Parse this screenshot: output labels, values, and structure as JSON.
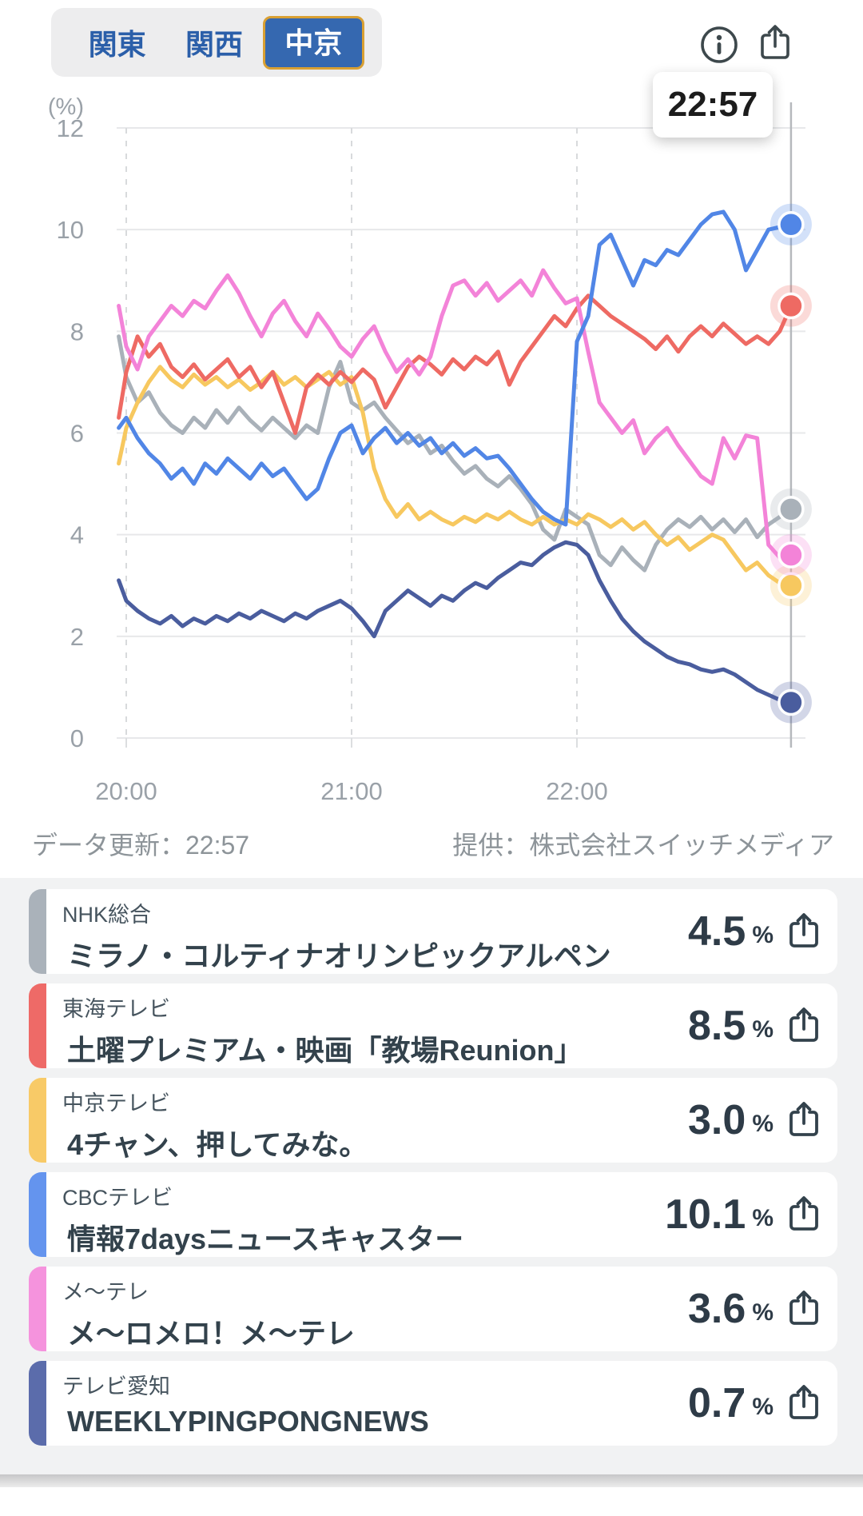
{
  "tabs": {
    "items": [
      {
        "label": "関東",
        "selected": false
      },
      {
        "label": "関西",
        "selected": false
      },
      {
        "label": "中京",
        "selected": true
      }
    ],
    "selected_bg": "#3568b0",
    "selected_border": "#d9a033",
    "label_color": "#2b5fa9"
  },
  "header": {
    "info_icon": "info-icon",
    "share_icon": "share-icon",
    "icon_color": "#3d484c"
  },
  "tooltip": {
    "time": "22:57"
  },
  "chart_data": {
    "type": "line",
    "unit_label": "(%)",
    "ylim": [
      0,
      12
    ],
    "yticks": [
      0,
      2,
      4,
      6,
      8,
      10,
      12
    ],
    "xticks": [
      {
        "label": "20:00",
        "minute": 0
      },
      {
        "label": "21:00",
        "minute": 60
      },
      {
        "label": "22:00",
        "minute": 120
      }
    ],
    "cursor_minute": 177,
    "cursor_time": "22:57",
    "grid_on": true,
    "sample_minutes": [
      -2,
      0,
      3,
      6,
      9,
      12,
      15,
      18,
      21,
      24,
      27,
      30,
      33,
      36,
      39,
      42,
      45,
      48,
      51,
      54,
      57,
      60,
      63,
      66,
      69,
      72,
      75,
      78,
      81,
      84,
      87,
      90,
      93,
      96,
      99,
      102,
      105,
      108,
      111,
      114,
      117,
      120,
      123,
      126,
      129,
      132,
      135,
      138,
      141,
      144,
      147,
      150,
      153,
      156,
      159,
      162,
      165,
      168,
      171,
      174,
      177
    ],
    "series": [
      {
        "name": "NHK総合",
        "color": "#a9b1b9",
        "end_value": 4.5,
        "values": [
          7.9,
          7.1,
          6.6,
          6.8,
          6.4,
          6.15,
          6.0,
          6.3,
          6.1,
          6.45,
          6.2,
          6.5,
          6.25,
          6.05,
          6.3,
          6.1,
          5.9,
          6.15,
          6.0,
          6.9,
          7.4,
          6.6,
          6.45,
          6.6,
          6.3,
          6.05,
          5.8,
          5.95,
          5.6,
          5.75,
          5.45,
          5.2,
          5.35,
          5.1,
          4.95,
          5.15,
          4.9,
          4.6,
          4.1,
          3.9,
          4.5,
          4.35,
          4.2,
          3.6,
          3.4,
          3.75,
          3.5,
          3.3,
          3.8,
          4.1,
          4.3,
          4.15,
          4.35,
          4.1,
          4.3,
          4.05,
          4.3,
          3.95,
          4.2,
          4.35,
          4.5
        ]
      },
      {
        "name": "中京テレビ",
        "color": "#f7c85f",
        "end_value": 3.0,
        "values": [
          5.4,
          6.1,
          6.6,
          7.0,
          7.3,
          7.05,
          6.9,
          7.15,
          6.95,
          7.1,
          6.9,
          7.05,
          6.85,
          7.0,
          7.2,
          6.95,
          7.1,
          6.9,
          7.05,
          7.2,
          6.95,
          7.1,
          6.4,
          5.3,
          4.7,
          4.35,
          4.6,
          4.3,
          4.45,
          4.3,
          4.2,
          4.35,
          4.25,
          4.4,
          4.3,
          4.45,
          4.3,
          4.2,
          4.35,
          4.2,
          4.3,
          4.2,
          4.4,
          4.3,
          4.15,
          4.3,
          4.1,
          4.25,
          4.0,
          3.8,
          3.95,
          3.7,
          3.85,
          4.0,
          3.9,
          3.6,
          3.3,
          3.45,
          3.2,
          3.05,
          3.0
        ]
      },
      {
        "name": "テレビ愛知",
        "color": "#4a5d9e",
        "end_value": 0.7,
        "values": [
          3.1,
          2.7,
          2.5,
          2.35,
          2.25,
          2.4,
          2.2,
          2.35,
          2.25,
          2.4,
          2.3,
          2.45,
          2.35,
          2.5,
          2.4,
          2.3,
          2.45,
          2.35,
          2.5,
          2.6,
          2.7,
          2.55,
          2.3,
          2.0,
          2.5,
          2.7,
          2.9,
          2.75,
          2.6,
          2.8,
          2.7,
          2.9,
          3.05,
          2.95,
          3.15,
          3.3,
          3.45,
          3.4,
          3.6,
          3.75,
          3.85,
          3.8,
          3.6,
          3.1,
          2.7,
          2.35,
          2.1,
          1.9,
          1.75,
          1.6,
          1.5,
          1.45,
          1.35,
          1.3,
          1.35,
          1.25,
          1.1,
          0.95,
          0.85,
          0.75,
          0.7
        ]
      },
      {
        "name": "東海テレビ",
        "color": "#ee6a63",
        "end_value": 8.5,
        "values": [
          6.3,
          7.2,
          7.9,
          7.5,
          7.75,
          7.3,
          7.1,
          7.35,
          7.05,
          7.25,
          7.45,
          7.1,
          7.3,
          6.9,
          7.2,
          6.6,
          6.0,
          6.9,
          7.15,
          6.95,
          7.2,
          7.0,
          7.25,
          7.05,
          6.5,
          6.9,
          7.3,
          7.5,
          7.35,
          7.15,
          7.45,
          7.25,
          7.5,
          7.35,
          7.6,
          6.95,
          7.4,
          7.7,
          8.0,
          8.3,
          8.1,
          8.45,
          8.7,
          8.5,
          8.3,
          8.15,
          8.0,
          7.85,
          7.65,
          7.9,
          7.6,
          7.9,
          8.1,
          7.9,
          8.15,
          7.95,
          7.75,
          7.9,
          7.75,
          8.0,
          8.5
        ]
      },
      {
        "name": "メ〜テレ",
        "color": "#f383d8",
        "end_value": 3.6,
        "values": [
          8.5,
          7.7,
          7.25,
          7.9,
          8.2,
          8.5,
          8.3,
          8.6,
          8.45,
          8.8,
          9.1,
          8.75,
          8.3,
          7.9,
          8.35,
          8.6,
          8.2,
          7.9,
          8.35,
          8.05,
          7.7,
          7.5,
          7.85,
          8.1,
          7.6,
          7.2,
          7.45,
          7.15,
          7.5,
          8.3,
          8.9,
          9.0,
          8.7,
          8.95,
          8.6,
          8.8,
          9.0,
          8.7,
          9.2,
          8.85,
          8.55,
          8.65,
          7.6,
          6.6,
          6.3,
          6.0,
          6.25,
          5.6,
          5.9,
          6.1,
          5.75,
          5.45,
          5.15,
          5.0,
          5.9,
          5.5,
          5.95,
          5.9,
          3.8,
          3.55,
          3.6
        ]
      },
      {
        "name": "CBCテレビ",
        "color": "#5186e6",
        "end_value": 10.1,
        "values": [
          6.1,
          6.3,
          5.9,
          5.6,
          5.4,
          5.1,
          5.3,
          5.0,
          5.4,
          5.2,
          5.5,
          5.3,
          5.1,
          5.4,
          5.15,
          5.3,
          5.0,
          4.7,
          4.9,
          5.5,
          6.0,
          6.15,
          5.6,
          5.9,
          6.1,
          5.8,
          6.0,
          5.75,
          5.9,
          5.6,
          5.8,
          5.55,
          5.7,
          5.5,
          5.55,
          5.3,
          5.0,
          4.7,
          4.45,
          4.3,
          4.2,
          7.8,
          8.3,
          9.7,
          9.9,
          9.4,
          8.9,
          9.4,
          9.3,
          9.6,
          9.5,
          9.8,
          10.1,
          10.3,
          10.35,
          10.0,
          9.2,
          9.6,
          10.0,
          10.05,
          10.1
        ]
      }
    ],
    "axis_color": "#9aa1a8",
    "grid_color": "#e7e8ea",
    "dash_color": "#d8dadc",
    "cursor_color": "#b6b9bd"
  },
  "footer": {
    "updated": "データ更新：22:57",
    "provider": "提供：株式会社スイッチメディア"
  },
  "channels": [
    {
      "station": "NHK総合",
      "program": "ミラノ・コルティナオリンピックアルペン",
      "value": "4.5",
      "unit": "%",
      "color": "#aab2ba"
    },
    {
      "station": "東海テレビ",
      "program": "土曜プレミアム・映画「教場Reunion」",
      "value": "8.5",
      "unit": "%",
      "color": "#ee6a67"
    },
    {
      "station": "中京テレビ",
      "program": "4チャン、押してみな。",
      "value": "3.0",
      "unit": "%",
      "color": "#f8ca67"
    },
    {
      "station": "CBCテレビ",
      "program": "情報7daysニュースキャスター",
      "value": "10.1",
      "unit": "%",
      "color": "#6494ee"
    },
    {
      "station": "メ〜テレ",
      "program": "メ〜ロメロ！メ〜テレ",
      "value": "3.6",
      "unit": "%",
      "color": "#f593dd"
    },
    {
      "station": "テレビ愛知",
      "program": "WEEKLYPINGPONGNEWS",
      "value": "0.7",
      "unit": "%",
      "color": "#5b6cab"
    }
  ]
}
